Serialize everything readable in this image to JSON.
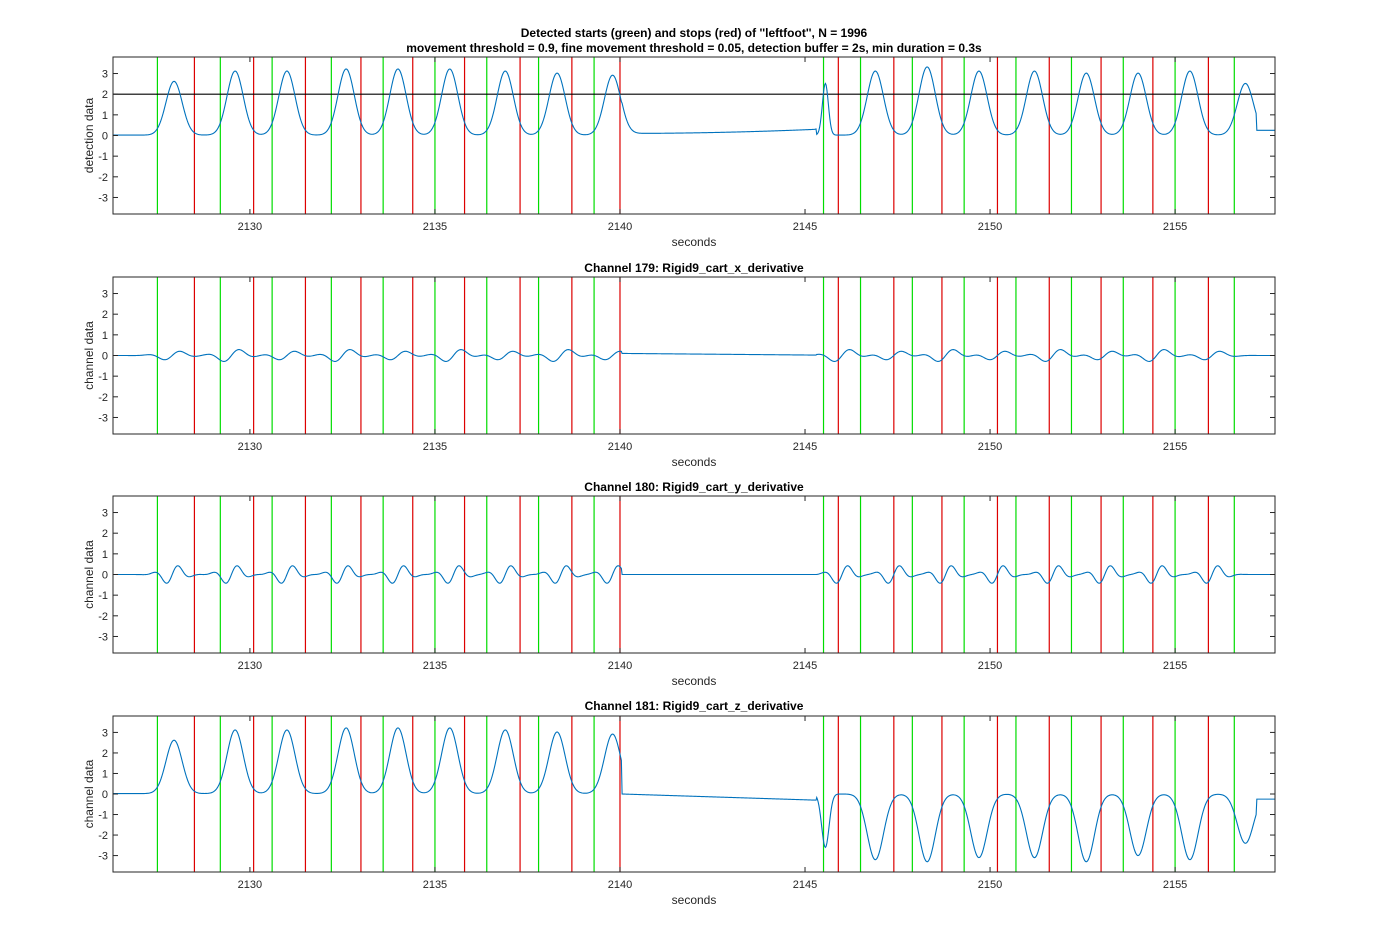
{
  "figure": {
    "title_line1": "Detected starts (green) and stops (red) of ''leftfoot'', N = 1996",
    "title_line2": "movement threshold = 0.9, fine movement threshold = 0.05, detection buffer = 2s, min duration = 0.3s"
  },
  "colors": {
    "start": "#00dd00",
    "stop": "#dd0000",
    "signal": "#0072bd",
    "threshold": "#000000",
    "axis": "#262626"
  },
  "chart_data": [
    {
      "type": "line",
      "title": "",
      "xlabel": "seconds",
      "ylabel": "detection data",
      "xlim": [
        2126.3,
        2157.7
      ],
      "ylim": [
        -3.8,
        3.8
      ],
      "xticks": [
        2130,
        2135,
        2140,
        2145,
        2150,
        2155
      ],
      "yticks": [
        -3,
        -2,
        -1,
        0,
        1,
        2,
        3
      ],
      "threshold": 2,
      "series": [
        {
          "name": "",
          "signal": "detection"
        }
      ],
      "starts": [
        2127.5,
        2129.2,
        2130.6,
        2132.2,
        2133.6,
        2135.0,
        2136.4,
        2137.8,
        2139.3,
        2145.5,
        2146.5,
        2147.9,
        2149.3,
        2150.7,
        2152.2,
        2153.6,
        2155.0,
        2156.6
      ],
      "stops": [
        2128.5,
        2130.1,
        2131.5,
        2133.0,
        2134.4,
        2135.8,
        2137.3,
        2138.7,
        2140.0,
        2145.9,
        2147.4,
        2148.7,
        2150.2,
        2151.6,
        2153.0,
        2154.4,
        2155.9
      ]
    },
    {
      "type": "line",
      "title": "Channel 179: Rigid9_cart_x_derivative",
      "xlabel": "seconds",
      "ylabel": "channel data",
      "xlim": [
        2126.3,
        2157.7
      ],
      "ylim": [
        -3.8,
        3.8
      ],
      "xticks": [
        2130,
        2135,
        2140,
        2145,
        2150,
        2155
      ],
      "yticks": [
        -3,
        -2,
        -1,
        0,
        1,
        2,
        3
      ],
      "series": [
        {
          "name": "",
          "signal": "x"
        }
      ],
      "starts": [
        2127.5,
        2129.2,
        2130.6,
        2132.2,
        2133.6,
        2135.0,
        2136.4,
        2137.8,
        2139.3,
        2145.5,
        2146.5,
        2147.9,
        2149.3,
        2150.7,
        2152.2,
        2153.6,
        2155.0,
        2156.6
      ],
      "stops": [
        2128.5,
        2130.1,
        2131.5,
        2133.0,
        2134.4,
        2135.8,
        2137.3,
        2138.7,
        2140.0,
        2145.9,
        2147.4,
        2148.7,
        2150.2,
        2151.6,
        2153.0,
        2154.4,
        2155.9
      ]
    },
    {
      "type": "line",
      "title": "Channel 180: Rigid9_cart_y_derivative",
      "xlabel": "seconds",
      "ylabel": "channel data",
      "xlim": [
        2126.3,
        2157.7
      ],
      "ylim": [
        -3.8,
        3.8
      ],
      "xticks": [
        2130,
        2135,
        2140,
        2145,
        2150,
        2155
      ],
      "yticks": [
        -3,
        -2,
        -1,
        0,
        1,
        2,
        3
      ],
      "series": [
        {
          "name": "",
          "signal": "y"
        }
      ],
      "starts": [
        2127.5,
        2129.2,
        2130.6,
        2132.2,
        2133.6,
        2135.0,
        2136.4,
        2137.8,
        2139.3,
        2145.5,
        2146.5,
        2147.9,
        2149.3,
        2150.7,
        2152.2,
        2153.6,
        2155.0,
        2156.6
      ],
      "stops": [
        2128.5,
        2130.1,
        2131.5,
        2133.0,
        2134.4,
        2135.8,
        2137.3,
        2138.7,
        2140.0,
        2145.9,
        2147.4,
        2148.7,
        2150.2,
        2151.6,
        2153.0,
        2154.4,
        2155.9
      ]
    },
    {
      "type": "line",
      "title": "Channel 181: Rigid9_cart_z_derivative",
      "xlabel": "seconds",
      "ylabel": "channel data",
      "xlim": [
        2126.3,
        2157.7
      ],
      "ylim": [
        -3.8,
        3.8
      ],
      "xticks": [
        2130,
        2135,
        2140,
        2145,
        2150,
        2155
      ],
      "yticks": [
        -3,
        -2,
        -1,
        0,
        1,
        2,
        3
      ],
      "series": [
        {
          "name": "",
          "signal": "z"
        }
      ],
      "starts": [
        2127.5,
        2129.2,
        2130.6,
        2132.2,
        2133.6,
        2135.0,
        2136.4,
        2137.8,
        2139.3,
        2145.5,
        2146.5,
        2147.9,
        2149.3,
        2150.7,
        2152.2,
        2153.6,
        2155.0,
        2156.6
      ],
      "stops": [
        2128.5,
        2130.1,
        2131.5,
        2133.0,
        2134.4,
        2135.8,
        2137.3,
        2138.7,
        2140.0,
        2145.9,
        2147.4,
        2148.7,
        2150.2,
        2151.6,
        2153.0,
        2154.4,
        2155.9
      ]
    }
  ]
}
